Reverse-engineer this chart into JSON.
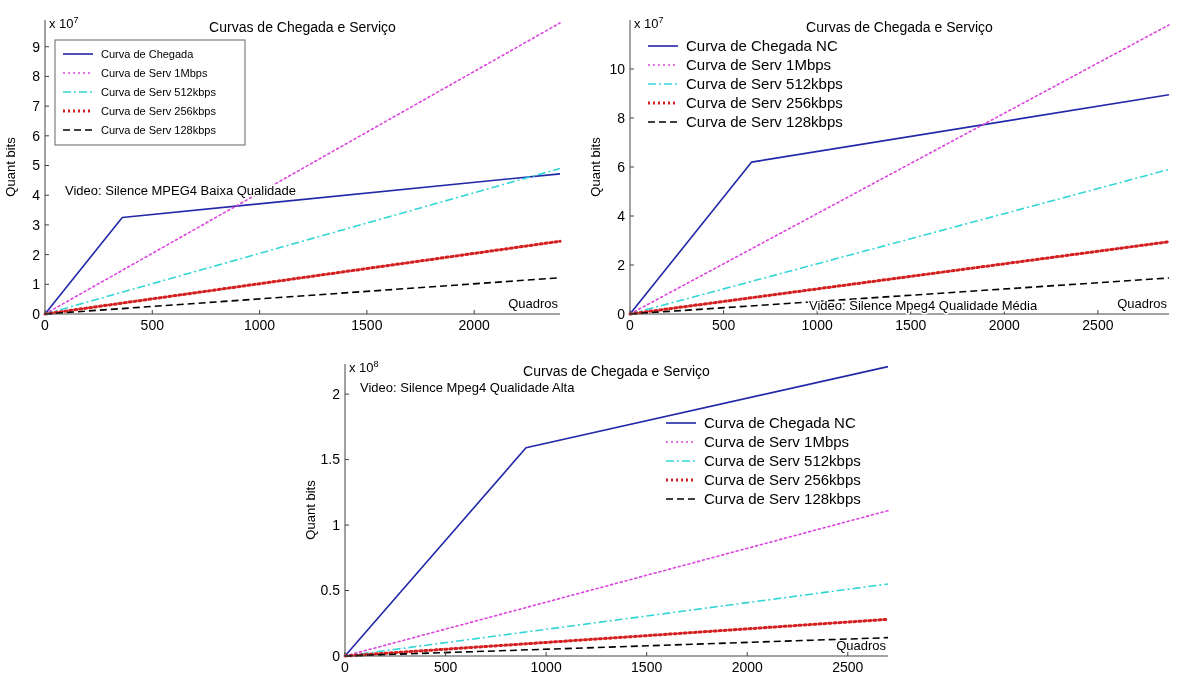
{
  "chart_data": [
    {
      "type": "line",
      "title": "Curvas de Chegada e Serviço",
      "xlabel": "Quadros",
      "ylabel": "Quant bits",
      "annotations": [
        "x 10$^{7}$",
        "Video: Silence MPEG4 Baixa Qualidade"
      ],
      "xlim": [
        0,
        2400
      ],
      "xticks": [
        0,
        500,
        1000,
        1500,
        2000
      ],
      "ylim": [
        0,
        9.9
      ],
      "yticks": [
        0,
        1,
        2,
        3,
        4,
        5,
        6,
        7,
        8,
        9
      ],
      "legend": "top left",
      "grid": false,
      "series": [
        {
          "name": "Curva de Chegada",
          "color": "#2228a8",
          "line_style": "solid",
          "x": [
            0,
            360,
            2400
          ],
          "values": [
            0,
            3.25,
            4.72
          ]
        },
        {
          "name": "Curva de Serv 1Mbps",
          "color": "#dd44dd",
          "line_style": "dotted",
          "x": [
            0,
            2400
          ],
          "values": [
            0,
            9.8
          ]
        },
        {
          "name": "Curva de Serv 512kbps",
          "color": "#33d6d6",
          "line_style": "dashdot",
          "x": [
            0,
            2400
          ],
          "values": [
            0,
            4.9
          ]
        },
        {
          "name": "Curva de Serv 256kbps",
          "color": "#d42020",
          "line_style": "dotted",
          "x": [
            0,
            2400
          ],
          "values": [
            0,
            2.45
          ]
        },
        {
          "name": "Curva de Serv 128kbps",
          "color": "#000000",
          "line_style": "dashed",
          "x": [
            0,
            2400
          ],
          "values": [
            0,
            1.22
          ]
        }
      ]
    },
    {
      "type": "line",
      "title": "Curvas de Chegada e Serviço",
      "xlabel": "Quadros",
      "ylabel": "Quant bits",
      "annotations": [
        "x 10$^{7}$",
        "Video: Silence Mpeg4 Qualidade Média"
      ],
      "xlim": [
        0,
        2880
      ],
      "xticks": [
        0,
        500,
        1000,
        1500,
        2000,
        2500
      ],
      "ylim": [
        0,
        12
      ],
      "yticks": [
        0,
        2,
        4,
        6,
        8,
        10
      ],
      "legend": "top left",
      "grid": false,
      "series": [
        {
          "name": "Curva de Chegada NC",
          "color": "#2228a8",
          "line_style": "solid",
          "x": [
            0,
            650,
            2880
          ],
          "values": [
            0,
            6.2,
            8.95
          ]
        },
        {
          "name": "Curva de Serv 1Mbps",
          "color": "#dd44dd",
          "line_style": "dotted",
          "x": [
            0,
            2880
          ],
          "values": [
            0,
            11.8
          ]
        },
        {
          "name": "Curva de Serv 512kbps",
          "color": "#33d6d6",
          "line_style": "dashdot",
          "x": [
            0,
            2880
          ],
          "values": [
            0,
            5.9
          ]
        },
        {
          "name": "Curva de Serv 256kbps",
          "color": "#d42020",
          "line_style": "dotted",
          "x": [
            0,
            2880
          ],
          "values": [
            0,
            2.95
          ]
        },
        {
          "name": "Curva de Serv 128kbps",
          "color": "#000000",
          "line_style": "dashed",
          "x": [
            0,
            2880
          ],
          "values": [
            0,
            1.47
          ]
        }
      ]
    },
    {
      "type": "line",
      "title": "Curvas de Chegada e Serviço",
      "xlabel": "Quadros",
      "ylabel": "Quant bits",
      "annotations": [
        "x 10$^{8}$",
        "Video: Silence Mpeg4 Qualidade Alta"
      ],
      "xlim": [
        0,
        2700
      ],
      "xticks": [
        0,
        500,
        1000,
        1500,
        2000,
        2500
      ],
      "ylim": [
        0,
        2.23
      ],
      "yticks": [
        0,
        0.5,
        1,
        1.5,
        2
      ],
      "legend": "top right",
      "grid": false,
      "series": [
        {
          "name": "Curva de Chegada NC",
          "color": "#2228a8",
          "line_style": "solid",
          "x": [
            0,
            900,
            2700
          ],
          "values": [
            0,
            1.59,
            2.21
          ]
        },
        {
          "name": "Curva de Serv 1Mbps",
          "color": "#dd44dd",
          "line_style": "dotted",
          "x": [
            0,
            2700
          ],
          "values": [
            0,
            1.11
          ]
        },
        {
          "name": "Curva de Serv 512kbps",
          "color": "#33d6d6",
          "line_style": "dashdot",
          "x": [
            0,
            2700
          ],
          "values": [
            0,
            0.55
          ]
        },
        {
          "name": "Curva de Serv 256kbps",
          "color": "#d42020",
          "line_style": "dotted",
          "x": [
            0,
            2700
          ],
          "values": [
            0,
            0.28
          ]
        },
        {
          "name": "Curva de Serv 128kbps",
          "color": "#000000",
          "line_style": "dashed",
          "x": [
            0,
            2700
          ],
          "values": [
            0,
            0.14
          ]
        }
      ]
    }
  ]
}
